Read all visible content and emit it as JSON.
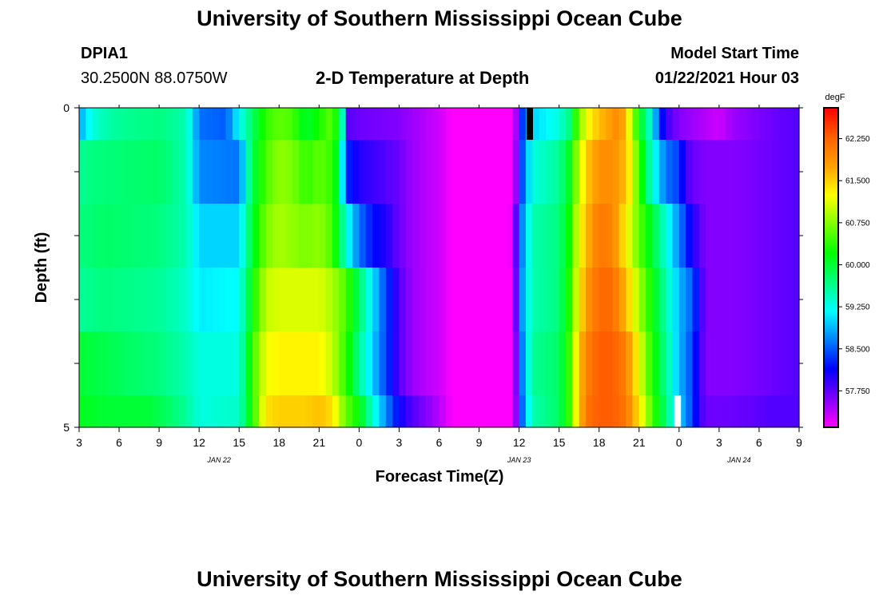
{
  "header": {
    "title": "University of Southern Mississippi Ocean Cube",
    "station_id": "DPIA1",
    "coordinates": "30.2500N 88.0750W",
    "plot_title": "2-D Temperature at Depth",
    "model_start_label": "Model Start Time",
    "model_start_value": "01/22/2021 Hour 03"
  },
  "footer": {
    "title": "University of Southern Mississippi Ocean Cube"
  },
  "chart_data": {
    "type": "heatmap",
    "title": "2-D Temperature at Depth",
    "xlabel": "Forecast Time(Z)",
    "ylabel": "Depth (ft)",
    "x_start_hour": 3,
    "x_end_hour": 57,
    "x_ticks": [
      "3",
      "6",
      "9",
      "12",
      "15",
      "18",
      "21",
      "0",
      "3",
      "6",
      "9",
      "12",
      "15",
      "18",
      "21",
      "0",
      "3",
      "6",
      "9"
    ],
    "date_labels": [
      {
        "label": "JAN 22",
        "hour": 13.5
      },
      {
        "label": "JAN 23",
        "hour": 36
      },
      {
        "label": "JAN 24",
        "hour": 52.5
      }
    ],
    "y_ticks": [
      "0",
      "5"
    ],
    "ylim": [
      0,
      5
    ],
    "colorbar": {
      "units": "degF",
      "range": [
        57.1,
        62.8
      ],
      "ticks": [
        "62.250",
        "61.500",
        "60.750",
        "60.000",
        "59.250",
        "58.500",
        "57.750"
      ],
      "tick_values": [
        62.25,
        61.5,
        60.75,
        60.0,
        59.25,
        58.5,
        57.75
      ],
      "stops": [
        "#ff00ff",
        "#7f00ff",
        "#0000ff",
        "#0080ff",
        "#00ffff",
        "#00ff80",
        "#00ff00",
        "#80ff00",
        "#ffff00",
        "#ffa000",
        "#ff6000",
        "#ff0000"
      ]
    },
    "depth_bins": [
      "0-0.5 ft",
      "0.5-1.5 ft",
      "1.5-2.5 ft",
      "2.5-3.5 ft",
      "3.5-4.5 ft",
      "4.5-5 ft"
    ],
    "rows": [
      {
        "depth": "0",
        "series": [
          [
            3,
            58.8
          ],
          [
            4,
            59.3
          ],
          [
            5,
            59.5
          ],
          [
            6,
            59.6
          ],
          [
            9,
            59.7
          ],
          [
            11,
            59.5
          ],
          [
            12,
            58.6
          ],
          [
            14,
            58.5
          ],
          [
            15,
            59.2
          ],
          [
            16,
            59.8
          ],
          [
            17,
            60.4
          ],
          [
            18,
            60.6
          ],
          [
            19,
            60.5
          ],
          [
            20,
            60.0
          ],
          [
            21,
            60.3
          ],
          [
            22,
            60.6
          ],
          [
            22.7,
            59.8
          ],
          [
            23,
            57.8
          ],
          [
            24,
            57.7
          ],
          [
            27,
            57.6
          ],
          [
            28,
            57.5
          ],
          [
            30,
            57.3
          ],
          [
            31,
            57.1
          ],
          [
            34,
            57.0
          ],
          [
            35,
            57.0
          ],
          [
            35.5,
            57.2
          ],
          [
            36,
            57.7
          ],
          [
            36.3,
            58.5
          ],
          [
            37,
            59.0
          ],
          [
            39,
            59.3
          ],
          [
            40,
            59.8
          ],
          [
            40.3,
            60.5
          ],
          [
            41,
            61.2
          ],
          [
            42,
            61.6
          ],
          [
            43,
            61.8
          ],
          [
            43.5,
            62.0
          ],
          [
            44,
            61.5
          ],
          [
            45,
            60.2
          ],
          [
            46,
            59.2
          ],
          [
            46.5,
            58.4
          ],
          [
            47,
            57.9
          ],
          [
            48,
            57.6
          ],
          [
            49,
            57.5
          ],
          [
            50,
            57.4
          ],
          [
            51,
            57.3
          ],
          [
            52,
            57.5
          ],
          [
            55,
            57.7
          ],
          [
            57,
            57.8
          ]
        ]
      },
      {
        "depth": "1",
        "series": [
          [
            3,
            59.6
          ],
          [
            4,
            59.7
          ],
          [
            9,
            59.8
          ],
          [
            11,
            59.5
          ],
          [
            12,
            58.7
          ],
          [
            15,
            58.6
          ],
          [
            16,
            59.9
          ],
          [
            17,
            60.5
          ],
          [
            18,
            60.8
          ],
          [
            19,
            60.7
          ],
          [
            20,
            60.4
          ],
          [
            21,
            60.6
          ],
          [
            22,
            60.4
          ],
          [
            22.5,
            59.9
          ],
          [
            23,
            58.3
          ],
          [
            24,
            58.0
          ],
          [
            26,
            57.8
          ],
          [
            27,
            57.7
          ],
          [
            28,
            57.5
          ],
          [
            30,
            57.3
          ],
          [
            31,
            57.1
          ],
          [
            34,
            57.0
          ],
          [
            35,
            57.0
          ],
          [
            35.5,
            57.2
          ],
          [
            36,
            57.8
          ],
          [
            36.3,
            58.6
          ],
          [
            37,
            59.3
          ],
          [
            39,
            59.6
          ],
          [
            40,
            60.2
          ],
          [
            40.3,
            60.8
          ],
          [
            41,
            61.5
          ],
          [
            42,
            61.9
          ],
          [
            43,
            61.9
          ],
          [
            44,
            61.6
          ],
          [
            45,
            60.5
          ],
          [
            46,
            59.3
          ],
          [
            47,
            58.6
          ],
          [
            48,
            58.4
          ],
          [
            48.5,
            57.9
          ],
          [
            49,
            57.7
          ],
          [
            50,
            57.6
          ],
          [
            52,
            57.6
          ],
          [
            55,
            57.7
          ],
          [
            57,
            57.8
          ]
        ]
      },
      {
        "depth": "2",
        "series": [
          [
            3,
            59.7
          ],
          [
            5,
            59.8
          ],
          [
            9,
            59.7
          ],
          [
            11,
            59.5
          ],
          [
            12,
            59.0
          ],
          [
            15,
            59.0
          ],
          [
            16,
            60.0
          ],
          [
            17,
            60.7
          ],
          [
            18,
            60.9
          ],
          [
            19,
            60.8
          ],
          [
            20,
            60.7
          ],
          [
            21,
            60.8
          ],
          [
            22,
            60.5
          ],
          [
            22.5,
            60.0
          ],
          [
            23,
            59.3
          ],
          [
            24,
            58.6
          ],
          [
            25,
            58.2
          ],
          [
            26,
            58.0
          ],
          [
            27,
            57.7
          ],
          [
            28,
            57.5
          ],
          [
            30,
            57.3
          ],
          [
            31,
            57.1
          ],
          [
            34,
            57.0
          ],
          [
            35,
            57.0
          ],
          [
            35.5,
            57.3
          ],
          [
            36,
            58.2
          ],
          [
            36.3,
            58.8
          ],
          [
            37,
            59.5
          ],
          [
            39,
            59.7
          ],
          [
            40,
            60.4
          ],
          [
            40.3,
            61.0
          ],
          [
            41,
            61.6
          ],
          [
            42,
            62.1
          ],
          [
            43,
            62.0
          ],
          [
            44,
            61.3
          ],
          [
            45,
            60.6
          ],
          [
            46,
            60.0
          ],
          [
            47,
            59.3
          ],
          [
            48,
            58.7
          ],
          [
            49,
            58.0
          ],
          [
            50,
            57.6
          ],
          [
            52,
            57.6
          ],
          [
            55,
            57.7
          ],
          [
            57,
            57.8
          ]
        ]
      },
      {
        "depth": "3",
        "series": [
          [
            3,
            59.6
          ],
          [
            5,
            59.7
          ],
          [
            9,
            59.6
          ],
          [
            11,
            59.4
          ],
          [
            12,
            59.1
          ],
          [
            15,
            59.2
          ],
          [
            16,
            60.2
          ],
          [
            17,
            61.0
          ],
          [
            18,
            61.1
          ],
          [
            20,
            61.1
          ],
          [
            21,
            61.1
          ],
          [
            22,
            60.9
          ],
          [
            23,
            60.5
          ],
          [
            24,
            59.8
          ],
          [
            25,
            59.1
          ],
          [
            26,
            58.4
          ],
          [
            27,
            57.8
          ],
          [
            28,
            57.5
          ],
          [
            30,
            57.3
          ],
          [
            31,
            57.1
          ],
          [
            34,
            57.0
          ],
          [
            35,
            57.0
          ],
          [
            35.5,
            57.2
          ],
          [
            36,
            58.2
          ],
          [
            36.3,
            58.9
          ],
          [
            37,
            59.5
          ],
          [
            39,
            59.7
          ],
          [
            40,
            60.5
          ],
          [
            40.3,
            61.1
          ],
          [
            41,
            61.8
          ],
          [
            42,
            62.2
          ],
          [
            43,
            62.2
          ],
          [
            44,
            61.6
          ],
          [
            45,
            60.9
          ],
          [
            46,
            60.2
          ],
          [
            47,
            59.5
          ],
          [
            48,
            58.9
          ],
          [
            49,
            58.5
          ],
          [
            49.5,
            58.0
          ],
          [
            50,
            57.6
          ],
          [
            52,
            57.6
          ],
          [
            55,
            57.7
          ],
          [
            57,
            57.8
          ]
        ]
      },
      {
        "depth": "4",
        "series": [
          [
            3,
            60.0
          ],
          [
            5,
            59.9
          ],
          [
            9,
            59.7
          ],
          [
            11,
            59.5
          ],
          [
            12,
            59.3
          ],
          [
            15,
            59.3
          ],
          [
            16,
            60.4
          ],
          [
            17,
            61.2
          ],
          [
            18,
            61.3
          ],
          [
            20,
            61.3
          ],
          [
            21,
            61.3
          ],
          [
            22,
            61.0
          ],
          [
            23,
            60.4
          ],
          [
            24,
            59.6
          ],
          [
            25,
            59.0
          ],
          [
            26,
            58.4
          ],
          [
            27,
            57.8
          ],
          [
            28,
            57.5
          ],
          [
            30,
            57.3
          ],
          [
            31,
            57.1
          ],
          [
            34,
            57.0
          ],
          [
            35,
            57.0
          ],
          [
            35.5,
            57.2
          ],
          [
            36,
            58.0
          ],
          [
            36.3,
            58.8
          ],
          [
            37,
            59.6
          ],
          [
            39,
            59.8
          ],
          [
            40,
            60.6
          ],
          [
            40.3,
            61.3
          ],
          [
            41,
            62.0
          ],
          [
            42,
            62.3
          ],
          [
            43,
            62.3
          ],
          [
            44,
            62.0
          ],
          [
            45,
            61.2
          ],
          [
            46,
            60.3
          ],
          [
            47,
            59.6
          ],
          [
            48,
            58.9
          ],
          [
            49,
            58.4
          ],
          [
            49.5,
            57.9
          ],
          [
            50,
            57.6
          ],
          [
            52,
            57.6
          ],
          [
            55,
            57.7
          ],
          [
            57,
            57.8
          ]
        ]
      },
      {
        "depth": "5",
        "series": [
          [
            3,
            60.1
          ],
          [
            5,
            60.0
          ],
          [
            8,
            60.0
          ],
          [
            9,
            59.9
          ],
          [
            11,
            59.6
          ],
          [
            12,
            59.3
          ],
          [
            15,
            59.4
          ],
          [
            16,
            60.3
          ],
          [
            17,
            61.4
          ],
          [
            18,
            61.5
          ],
          [
            20,
            61.5
          ],
          [
            21,
            61.6
          ],
          [
            22,
            61.4
          ],
          [
            23,
            60.6
          ],
          [
            24,
            60.2
          ],
          [
            25,
            59.4
          ],
          [
            26,
            58.7
          ],
          [
            27,
            58.1
          ],
          [
            28,
            57.8
          ],
          [
            30,
            57.4
          ],
          [
            31,
            57.1
          ],
          [
            34,
            57.0
          ],
          [
            35,
            57.0
          ],
          [
            35.5,
            57.2
          ],
          [
            36,
            57.9
          ],
          [
            36.3,
            58.7
          ],
          [
            37,
            59.5
          ],
          [
            39,
            59.8
          ],
          [
            40,
            60.6
          ],
          [
            40.3,
            61.3
          ],
          [
            41,
            62.1
          ],
          [
            42,
            62.3
          ],
          [
            43,
            62.3
          ],
          [
            44,
            62.1
          ],
          [
            45,
            61.4
          ],
          [
            46,
            60.5
          ],
          [
            47,
            59.7
          ],
          [
            48,
            59.0
          ],
          [
            49,
            58.4
          ],
          [
            49.5,
            57.9
          ],
          [
            50,
            57.7
          ],
          [
            52,
            57.7
          ],
          [
            55,
            57.8
          ],
          [
            57,
            57.8
          ]
        ]
      }
    ],
    "markers": [
      {
        "hour": 36.8,
        "row": 0,
        "color": "#000000"
      },
      {
        "hour": 47.9,
        "row": 5,
        "color": "#ffffff"
      }
    ]
  }
}
